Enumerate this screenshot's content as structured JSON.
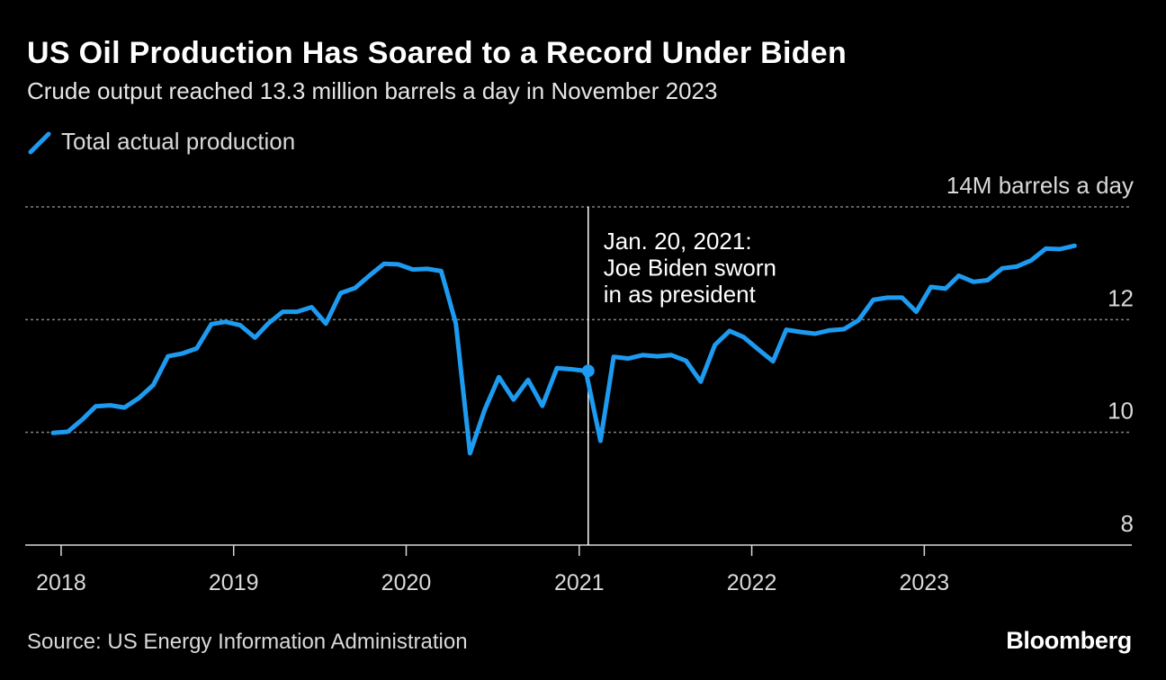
{
  "header": {
    "title": "US Oil Production Has Soared to a Record Under Biden",
    "subtitle": "Crude output reached 13.3 million barrels a day in November 2023"
  },
  "legend": {
    "label": "Total actual production"
  },
  "footer": {
    "source": "Source: US Energy Information Administration",
    "logo": "Bloomberg"
  },
  "colors": {
    "background": "#000000",
    "series": "#1d9bf0",
    "grid": "#808080",
    "axis": "#d9d9d9",
    "text": "#ffffff"
  },
  "chart_data": {
    "type": "line",
    "title": "US Oil Production Has Soared to a Record Under Biden",
    "subtitle": "Crude output reached 13.3 million barrels a day in November 2023",
    "ylabel": "14M barrels a day",
    "ylim": [
      8,
      14
    ],
    "yticks": [
      {
        "value": 14,
        "label": "14M barrels a day"
      },
      {
        "value": 12,
        "label": "12"
      },
      {
        "value": 10,
        "label": "10"
      },
      {
        "value": 8,
        "label": "8"
      }
    ],
    "xlim": [
      "2017-10-17",
      "2024-03-15"
    ],
    "xticks": [
      {
        "date": "2018-01-01",
        "label": "2018"
      },
      {
        "date": "2019-01-01",
        "label": "2019"
      },
      {
        "date": "2020-01-01",
        "label": "2020"
      },
      {
        "date": "2021-01-01",
        "label": "2021"
      },
      {
        "date": "2022-01-01",
        "label": "2022"
      },
      {
        "date": "2023-01-01",
        "label": "2023"
      }
    ],
    "grid": true,
    "legend_position": "top-left",
    "series": [
      {
        "name": "Total actual production",
        "color": "#1d9bf0",
        "points": [
          [
            "2017-12",
            9.99
          ],
          [
            "2018-01",
            10.01
          ],
          [
            "2018-02",
            10.23
          ],
          [
            "2018-03",
            10.46
          ],
          [
            "2018-04",
            10.48
          ],
          [
            "2018-05",
            10.44
          ],
          [
            "2018-06",
            10.61
          ],
          [
            "2018-07",
            10.84
          ],
          [
            "2018-08",
            11.35
          ],
          [
            "2018-09",
            11.4
          ],
          [
            "2018-10",
            11.49
          ],
          [
            "2018-11",
            11.92
          ],
          [
            "2018-12",
            11.96
          ],
          [
            "2019-01",
            11.9
          ],
          [
            "2019-02",
            11.68
          ],
          [
            "2019-03",
            11.93
          ],
          [
            "2019-04",
            12.14
          ],
          [
            "2019-05",
            12.14
          ],
          [
            "2019-06",
            12.22
          ],
          [
            "2019-07",
            11.93
          ],
          [
            "2019-08",
            12.47
          ],
          [
            "2019-09",
            12.56
          ],
          [
            "2019-10",
            12.78
          ],
          [
            "2019-11",
            12.99
          ],
          [
            "2019-12",
            12.98
          ],
          [
            "2020-01",
            12.89
          ],
          [
            "2020-02",
            12.9
          ],
          [
            "2020-03",
            12.86
          ],
          [
            "2020-04",
            11.93
          ],
          [
            "2020-05",
            9.63
          ],
          [
            "2020-06",
            10.4
          ],
          [
            "2020-07",
            10.98
          ],
          [
            "2020-08",
            10.58
          ],
          [
            "2020-09",
            10.93
          ],
          [
            "2020-10",
            10.47
          ],
          [
            "2020-11",
            11.14
          ],
          [
            "2020-12",
            11.12
          ],
          [
            "2021-01",
            11.09
          ],
          [
            "2021-02",
            9.85
          ],
          [
            "2021-03",
            11.34
          ],
          [
            "2021-04",
            11.31
          ],
          [
            "2021-05",
            11.37
          ],
          [
            "2021-06",
            11.35
          ],
          [
            "2021-07",
            11.37
          ],
          [
            "2021-08",
            11.27
          ],
          [
            "2021-09",
            10.9
          ],
          [
            "2021-10",
            11.55
          ],
          [
            "2021-11",
            11.8
          ],
          [
            "2021-12",
            11.69
          ],
          [
            "2022-01",
            11.47
          ],
          [
            "2022-02",
            11.26
          ],
          [
            "2022-03",
            11.82
          ],
          [
            "2022-04",
            11.78
          ],
          [
            "2022-05",
            11.75
          ],
          [
            "2022-06",
            11.81
          ],
          [
            "2022-07",
            11.83
          ],
          [
            "2022-08",
            11.99
          ],
          [
            "2022-09",
            12.35
          ],
          [
            "2022-10",
            12.39
          ],
          [
            "2022-11",
            12.39
          ],
          [
            "2022-12",
            12.14
          ],
          [
            "2023-01",
            12.58
          ],
          [
            "2023-02",
            12.55
          ],
          [
            "2023-03",
            12.78
          ],
          [
            "2023-04",
            12.67
          ],
          [
            "2023-05",
            12.7
          ],
          [
            "2023-06",
            12.91
          ],
          [
            "2023-07",
            12.94
          ],
          [
            "2023-08",
            13.05
          ],
          [
            "2023-09",
            13.26
          ],
          [
            "2023-10",
            13.25
          ],
          [
            "2023-11",
            13.31
          ]
        ]
      }
    ],
    "annotations": [
      {
        "date": "2021-01-20",
        "value": 11.09,
        "lines": [
          "Jan. 20, 2021:",
          "Joe Biden sworn",
          "in as president"
        ]
      }
    ]
  }
}
